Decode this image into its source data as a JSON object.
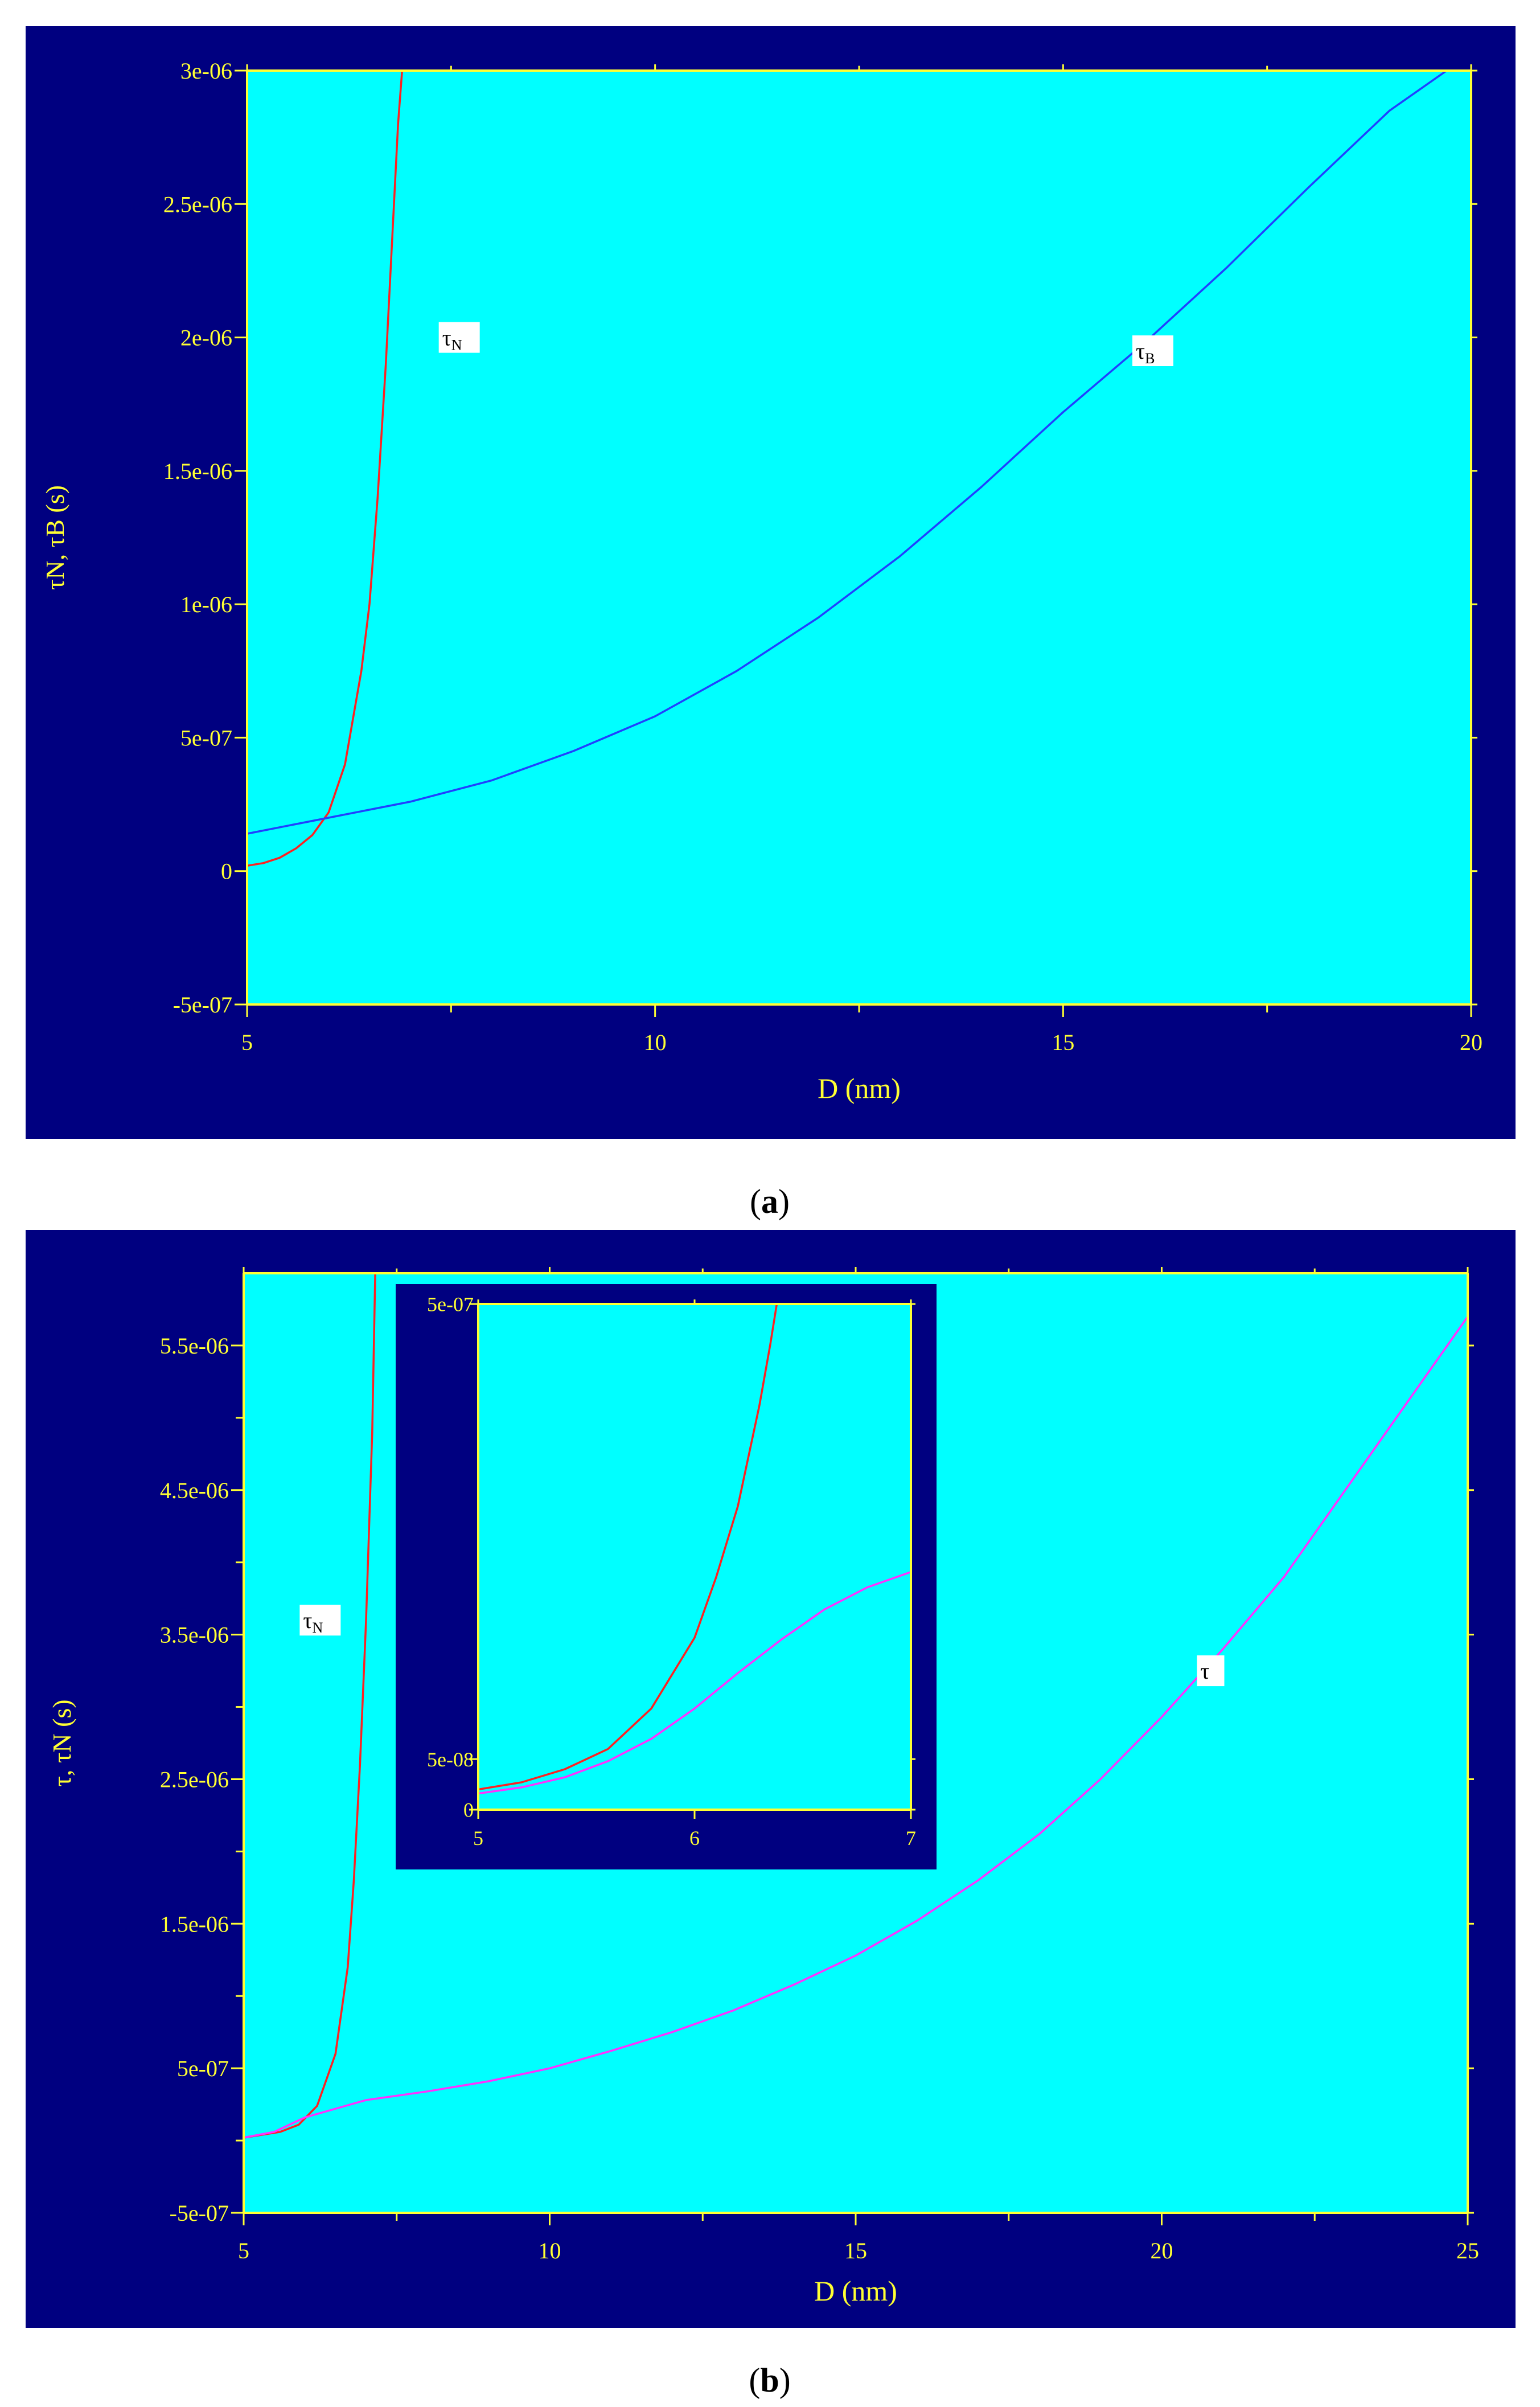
{
  "colors": {
    "frame": "#000080",
    "plot_bg": "#00ffff",
    "axis": "#ffff33",
    "tau_n": "#ff2020",
    "tau_b": "#2040ff",
    "tau": "#ff30ff",
    "label_box": "#ffffff"
  },
  "captions": {
    "a_open": "(",
    "a_letter": "a",
    "a_close": ")",
    "b_open": "(",
    "b_letter": "b",
    "b_close": ")"
  },
  "chart_data": [
    {
      "id": "a",
      "type": "line",
      "xlabel": "D (nm)",
      "ylabel": "τN, τB (s)",
      "xlim": [
        5,
        20
      ],
      "ylim": [
        -5e-07,
        3e-06
      ],
      "xticks": [
        5,
        10,
        15,
        20
      ],
      "xtick_labels": [
        "5",
        "10",
        "15",
        "20"
      ],
      "yticks": [
        -5e-07,
        0,
        5e-07,
        1e-06,
        1.5e-06,
        2e-06,
        2.5e-06,
        3e-06
      ],
      "ytick_labels": [
        "-5e-07",
        "0",
        "5e-07",
        "1e-06",
        "1.5e-06",
        "2e-06",
        "2.5e-06",
        "3e-06"
      ],
      "grid": false,
      "series": [
        {
          "name": "τN",
          "color": "#ff2020",
          "x": [
            5.0,
            5.2,
            5.4,
            5.6,
            5.8,
            6.0,
            6.2,
            6.4,
            6.5,
            6.6,
            6.7,
            6.8,
            6.85,
            6.9
          ],
          "y": [
            2e-08,
            3e-08,
            5e-08,
            8.5e-08,
            1.35e-07,
            2.2e-07,
            4e-07,
            7.5e-07,
            1e-06,
            1.4e-06,
            1.9e-06,
            2.5e-06,
            2.8e-06,
            3e-06
          ]
        },
        {
          "name": "τB",
          "color": "#2040ff",
          "x": [
            5,
            6,
            7,
            8,
            9,
            10,
            11,
            12,
            13,
            14,
            15,
            16,
            17,
            18,
            19,
            19.7
          ],
          "y": [
            1.4e-07,
            2e-07,
            2.6e-07,
            3.4e-07,
            4.5e-07,
            5.8e-07,
            7.5e-07,
            9.5e-07,
            1.18e-06,
            1.44e-06,
            1.72e-06,
            1.98e-06,
            2.26e-06,
            2.56e-06,
            2.85e-06,
            3e-06
          ]
        }
      ],
      "annotations": [
        {
          "text": "τN",
          "x": 7.6,
          "y": 2e-06
        },
        {
          "text": "τB",
          "x": 16.1,
          "y": 1.95e-06
        }
      ]
    },
    {
      "id": "b",
      "type": "line",
      "xlabel": "D (nm)",
      "ylabel": "τ, τN (s)",
      "xlim": [
        5,
        25
      ],
      "ylim": [
        -5e-07,
        6e-06
      ],
      "xticks": [
        5,
        10,
        15,
        20,
        25
      ],
      "xtick_labels": [
        "5",
        "10",
        "15",
        "20",
        "25"
      ],
      "yticks": [
        -5e-07,
        5e-07,
        1.5e-06,
        2.5e-06,
        3.5e-06,
        4.5e-06,
        5.5e-06
      ],
      "ytick_labels": [
        "-5e-07",
        "5e-07",
        "1.5e-06",
        "2.5e-06",
        "3.5e-06",
        "4.5e-06",
        "5.5e-06"
      ],
      "grid": false,
      "series": [
        {
          "name": "τN",
          "color": "#ff2020",
          "x": [
            5.0,
            5.3,
            5.6,
            5.9,
            6.2,
            6.5,
            6.7,
            6.8,
            6.9,
            7.0,
            7.1,
            7.15
          ],
          "y": [
            2e-08,
            4e-08,
            6e-08,
            1.1e-07,
            2.4e-07,
            6e-07,
            1.2e-06,
            1.8e-06,
            2.6e-06,
            3.6e-06,
            4.9e-06,
            6e-06
          ]
        },
        {
          "name": "τ",
          "color": "#ff30ff",
          "x": [
            5,
            5.5,
            6,
            7,
            8,
            9,
            10,
            11,
            12,
            13,
            14,
            15,
            16,
            17,
            18,
            19,
            20,
            21,
            22,
            23,
            24,
            25
          ],
          "y": [
            2e-08,
            6e-08,
            1.6e-07,
            2.8e-07,
            3.4e-07,
            4.1e-07,
            5e-07,
            6.2e-07,
            7.5e-07,
            9e-07,
            1.08e-06,
            1.28e-06,
            1.52e-06,
            1.8e-06,
            2.12e-06,
            2.5e-06,
            2.93e-06,
            3.4e-06,
            3.9e-06,
            4.5e-06,
            5.1e-06,
            5.7e-06
          ]
        }
      ],
      "annotations": [
        {
          "text": "τN",
          "x": 6.25,
          "y": 3.6e-06
        },
        {
          "text": "τ",
          "x": 20.8,
          "y": 3.25e-06
        }
      ]
    },
    {
      "id": "b-inset",
      "type": "line",
      "xlabel": "",
      "ylabel": "",
      "xlim": [
        5,
        7
      ],
      "ylim": [
        0,
        5e-07
      ],
      "xticks": [
        5,
        6,
        7
      ],
      "xtick_labels": [
        "5",
        "6",
        "7"
      ],
      "yticks": [
        0,
        5e-08,
        5e-07
      ],
      "ytick_labels": [
        "0",
        "5e-08",
        "5e-07"
      ],
      "grid": false,
      "series": [
        {
          "name": "τN",
          "color": "#ff2020",
          "x": [
            5.0,
            5.2,
            5.4,
            5.6,
            5.8,
            6.0,
            6.1,
            6.2,
            6.3,
            6.35,
            6.38
          ],
          "y": [
            2e-08,
            2.7e-08,
            4e-08,
            6e-08,
            1e-07,
            1.7e-07,
            2.3e-07,
            3e-07,
            4e-07,
            4.6e-07,
            5e-07
          ]
        },
        {
          "name": "τ",
          "color": "#ff30ff",
          "x": [
            5.0,
            5.2,
            5.4,
            5.6,
            5.8,
            6.0,
            6.2,
            6.4,
            6.6,
            6.8,
            7.0
          ],
          "y": [
            1.6e-08,
            2.2e-08,
            3.2e-08,
            4.8e-08,
            7e-08,
            1e-07,
            1.35e-07,
            1.68e-07,
            1.98e-07,
            2.2e-07,
            2.35e-07
          ]
        }
      ],
      "annotations": []
    }
  ]
}
